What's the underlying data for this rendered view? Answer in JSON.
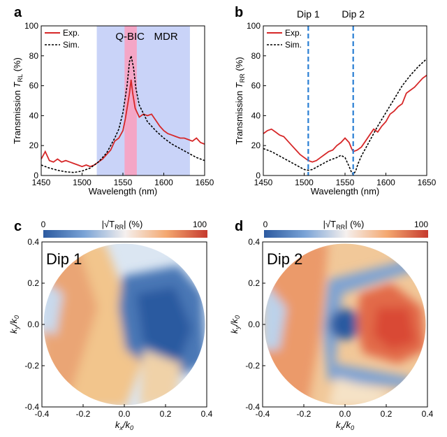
{
  "panels": {
    "a": {
      "letter": "a",
      "xlabel": "Wavelength (nm)",
      "ylabel_main": "Transmission ",
      "ylabel_T": "T",
      "ylabel_sub": "RL",
      "ylabel_unit": " (%)",
      "xticks": [
        "1450",
        "1500",
        "1550",
        "1600",
        "1650"
      ],
      "yticks": [
        "0",
        "20",
        "40",
        "60",
        "80",
        "100"
      ],
      "legend": [
        "Exp.",
        "Sim."
      ],
      "band_labels": {
        "qbic": "Q-BIC",
        "mdr": "MDR"
      }
    },
    "b": {
      "letter": "b",
      "xlabel": "Wavelength (nm)",
      "ylabel_main": "Transmission ",
      "ylabel_T": "T",
      "ylabel_sub": "RR",
      "ylabel_unit": " (%)",
      "xticks": [
        "1450",
        "1500",
        "1550",
        "1600",
        "1650"
      ],
      "yticks": [
        "0",
        "20",
        "40",
        "60",
        "80",
        "100"
      ],
      "legend": [
        "Exp.",
        "Sim."
      ],
      "dip_labels": [
        "Dip 1",
        "Dip 2"
      ]
    },
    "c": {
      "letter": "c",
      "map_label": "Dip 1",
      "cbar_min": "0",
      "cbar_max": "100",
      "cbar_title": "|√T",
      "cbar_sub": "RR",
      "cbar_unit": "| (%)",
      "xticks": [
        "-0.4",
        "-0.2",
        "0.0",
        "0.2",
        "0.4"
      ],
      "yticks": [
        "0.4",
        "0.2",
        "0.0",
        "-0.2",
        "-0.4"
      ],
      "xlabel_k": "k",
      "xlabel_sub": "x",
      "ylabel_k": "k",
      "ylabel_sub": "y",
      "k0": "/k",
      "k0sub": "0"
    },
    "d": {
      "letter": "d",
      "map_label": "Dip 2",
      "cbar_min": "0",
      "cbar_max": "100",
      "cbar_title": "|√T",
      "cbar_sub": "RR",
      "cbar_unit": "| (%)",
      "xticks": [
        "-0.4",
        "-0.2",
        "0.0",
        "0.2",
        "0.4"
      ],
      "yticks": [
        "0.4",
        "0.2",
        "0.0",
        "-0.2",
        "-0.4"
      ],
      "xlabel_k": "k",
      "xlabel_sub": "x",
      "ylabel_k": "k",
      "ylabel_sub": "y",
      "k0": "/k",
      "k0sub": "0"
    }
  },
  "colors": {
    "exp": "#d62728",
    "sim": "#000000",
    "qbic_band": "#f4a6c6",
    "mdr_band": "#c9d3f8",
    "dip_line": "#2a7fd4",
    "qbic_text": "#d6243a",
    "mdr_text": "#3b7fd6"
  },
  "chart_data": [
    {
      "type": "line",
      "panel": "a",
      "xlim": [
        1450,
        1650
      ],
      "ylim": [
        0,
        100
      ],
      "bands": [
        {
          "name": "MDR",
          "range": [
            1518,
            1632
          ]
        },
        {
          "name": "Q-BIC",
          "range": [
            1552,
            1567
          ]
        }
      ],
      "series": [
        {
          "name": "Exp.",
          "style": "solid",
          "x": [
            1450,
            1455,
            1460,
            1465,
            1470,
            1475,
            1480,
            1485,
            1490,
            1495,
            1500,
            1505,
            1510,
            1515,
            1520,
            1525,
            1530,
            1535,
            1540,
            1545,
            1550,
            1553,
            1556,
            1558,
            1560,
            1562,
            1565,
            1570,
            1575,
            1580,
            1585,
            1590,
            1595,
            1600,
            1605,
            1610,
            1615,
            1620,
            1625,
            1630,
            1635,
            1640,
            1645,
            1650
          ],
          "y": [
            11,
            16,
            10,
            9,
            11,
            9,
            10,
            9,
            8,
            7,
            6,
            7,
            6,
            7,
            9,
            11,
            14,
            17,
            23,
            25,
            30,
            38,
            48,
            55,
            64,
            55,
            45,
            39,
            41,
            40,
            41,
            37,
            33,
            30,
            28,
            27,
            26,
            25,
            25,
            24,
            23,
            25,
            22,
            21
          ]
        },
        {
          "name": "Sim.",
          "style": "dashed",
          "x": [
            1450,
            1460,
            1470,
            1480,
            1490,
            1500,
            1510,
            1520,
            1530,
            1540,
            1545,
            1550,
            1555,
            1558,
            1560,
            1563,
            1566,
            1570,
            1580,
            1590,
            1600,
            1610,
            1620,
            1630,
            1640,
            1650
          ],
          "y": [
            7,
            5,
            3.5,
            2.5,
            2,
            3,
            5,
            9,
            15,
            25,
            31,
            42,
            60,
            76,
            80,
            72,
            58,
            47,
            36,
            30,
            25,
            21,
            18,
            15,
            12,
            10
          ]
        }
      ]
    },
    {
      "type": "line",
      "panel": "b",
      "xlim": [
        1450,
        1650
      ],
      "ylim": [
        0,
        100
      ],
      "vlines": [
        {
          "name": "Dip 1",
          "x": 1505
        },
        {
          "name": "Dip 2",
          "x": 1560
        }
      ],
      "series": [
        {
          "name": "Exp.",
          "style": "solid",
          "x": [
            1450,
            1455,
            1460,
            1465,
            1470,
            1475,
            1480,
            1485,
            1490,
            1495,
            1500,
            1505,
            1510,
            1515,
            1520,
            1525,
            1530,
            1535,
            1540,
            1545,
            1550,
            1555,
            1558,
            1560,
            1565,
            1570,
            1575,
            1580,
            1585,
            1590,
            1595,
            1600,
            1605,
            1610,
            1615,
            1620,
            1625,
            1630,
            1635,
            1640,
            1645,
            1650
          ],
          "y": [
            28,
            30,
            31,
            29,
            27,
            26,
            23,
            20,
            17,
            14,
            12,
            10,
            9,
            10,
            12,
            14,
            16,
            17,
            20,
            22,
            25,
            22,
            18,
            16,
            17,
            19,
            23,
            27,
            31,
            29,
            33,
            36,
            41,
            43,
            46,
            48,
            55,
            57,
            59,
            62,
            65,
            67
          ]
        },
        {
          "name": "Sim.",
          "style": "dashed",
          "x": [
            1450,
            1460,
            1470,
            1480,
            1490,
            1500,
            1505,
            1510,
            1520,
            1530,
            1540,
            1545,
            1550,
            1555,
            1558,
            1560,
            1563,
            1566,
            1570,
            1580,
            1590,
            1600,
            1610,
            1620,
            1630,
            1640,
            1650
          ],
          "y": [
            18,
            16,
            13,
            10,
            7,
            4,
            3.5,
            4,
            7,
            10,
            12,
            13.5,
            12,
            6,
            2,
            0.5,
            3,
            8,
            13,
            23,
            33,
            42,
            51,
            60,
            67,
            73,
            78
          ]
        }
      ]
    },
    {
      "type": "heatmap",
      "panel": "c",
      "xlim": [
        -0.4,
        0.4
      ],
      "ylim": [
        -0.4,
        0.4
      ],
      "colorbar": {
        "min": 0,
        "max": 100
      },
      "features": [
        {
          "type": "warm_diagonal_band",
          "level": 75
        },
        {
          "type": "low_region",
          "center": [
            0.15,
            0.05
          ],
          "level": 15
        }
      ]
    },
    {
      "type": "heatmap",
      "panel": "d",
      "xlim": [
        -0.4,
        0.4
      ],
      "ylim": [
        -0.4,
        0.4
      ],
      "colorbar": {
        "min": 0,
        "max": 100
      },
      "features": [
        {
          "type": "low_spot",
          "center": [
            0.0,
            0.0
          ],
          "level": 5
        },
        {
          "type": "warm_region",
          "center": [
            0.22,
            0.0
          ],
          "level": 85
        }
      ]
    }
  ]
}
